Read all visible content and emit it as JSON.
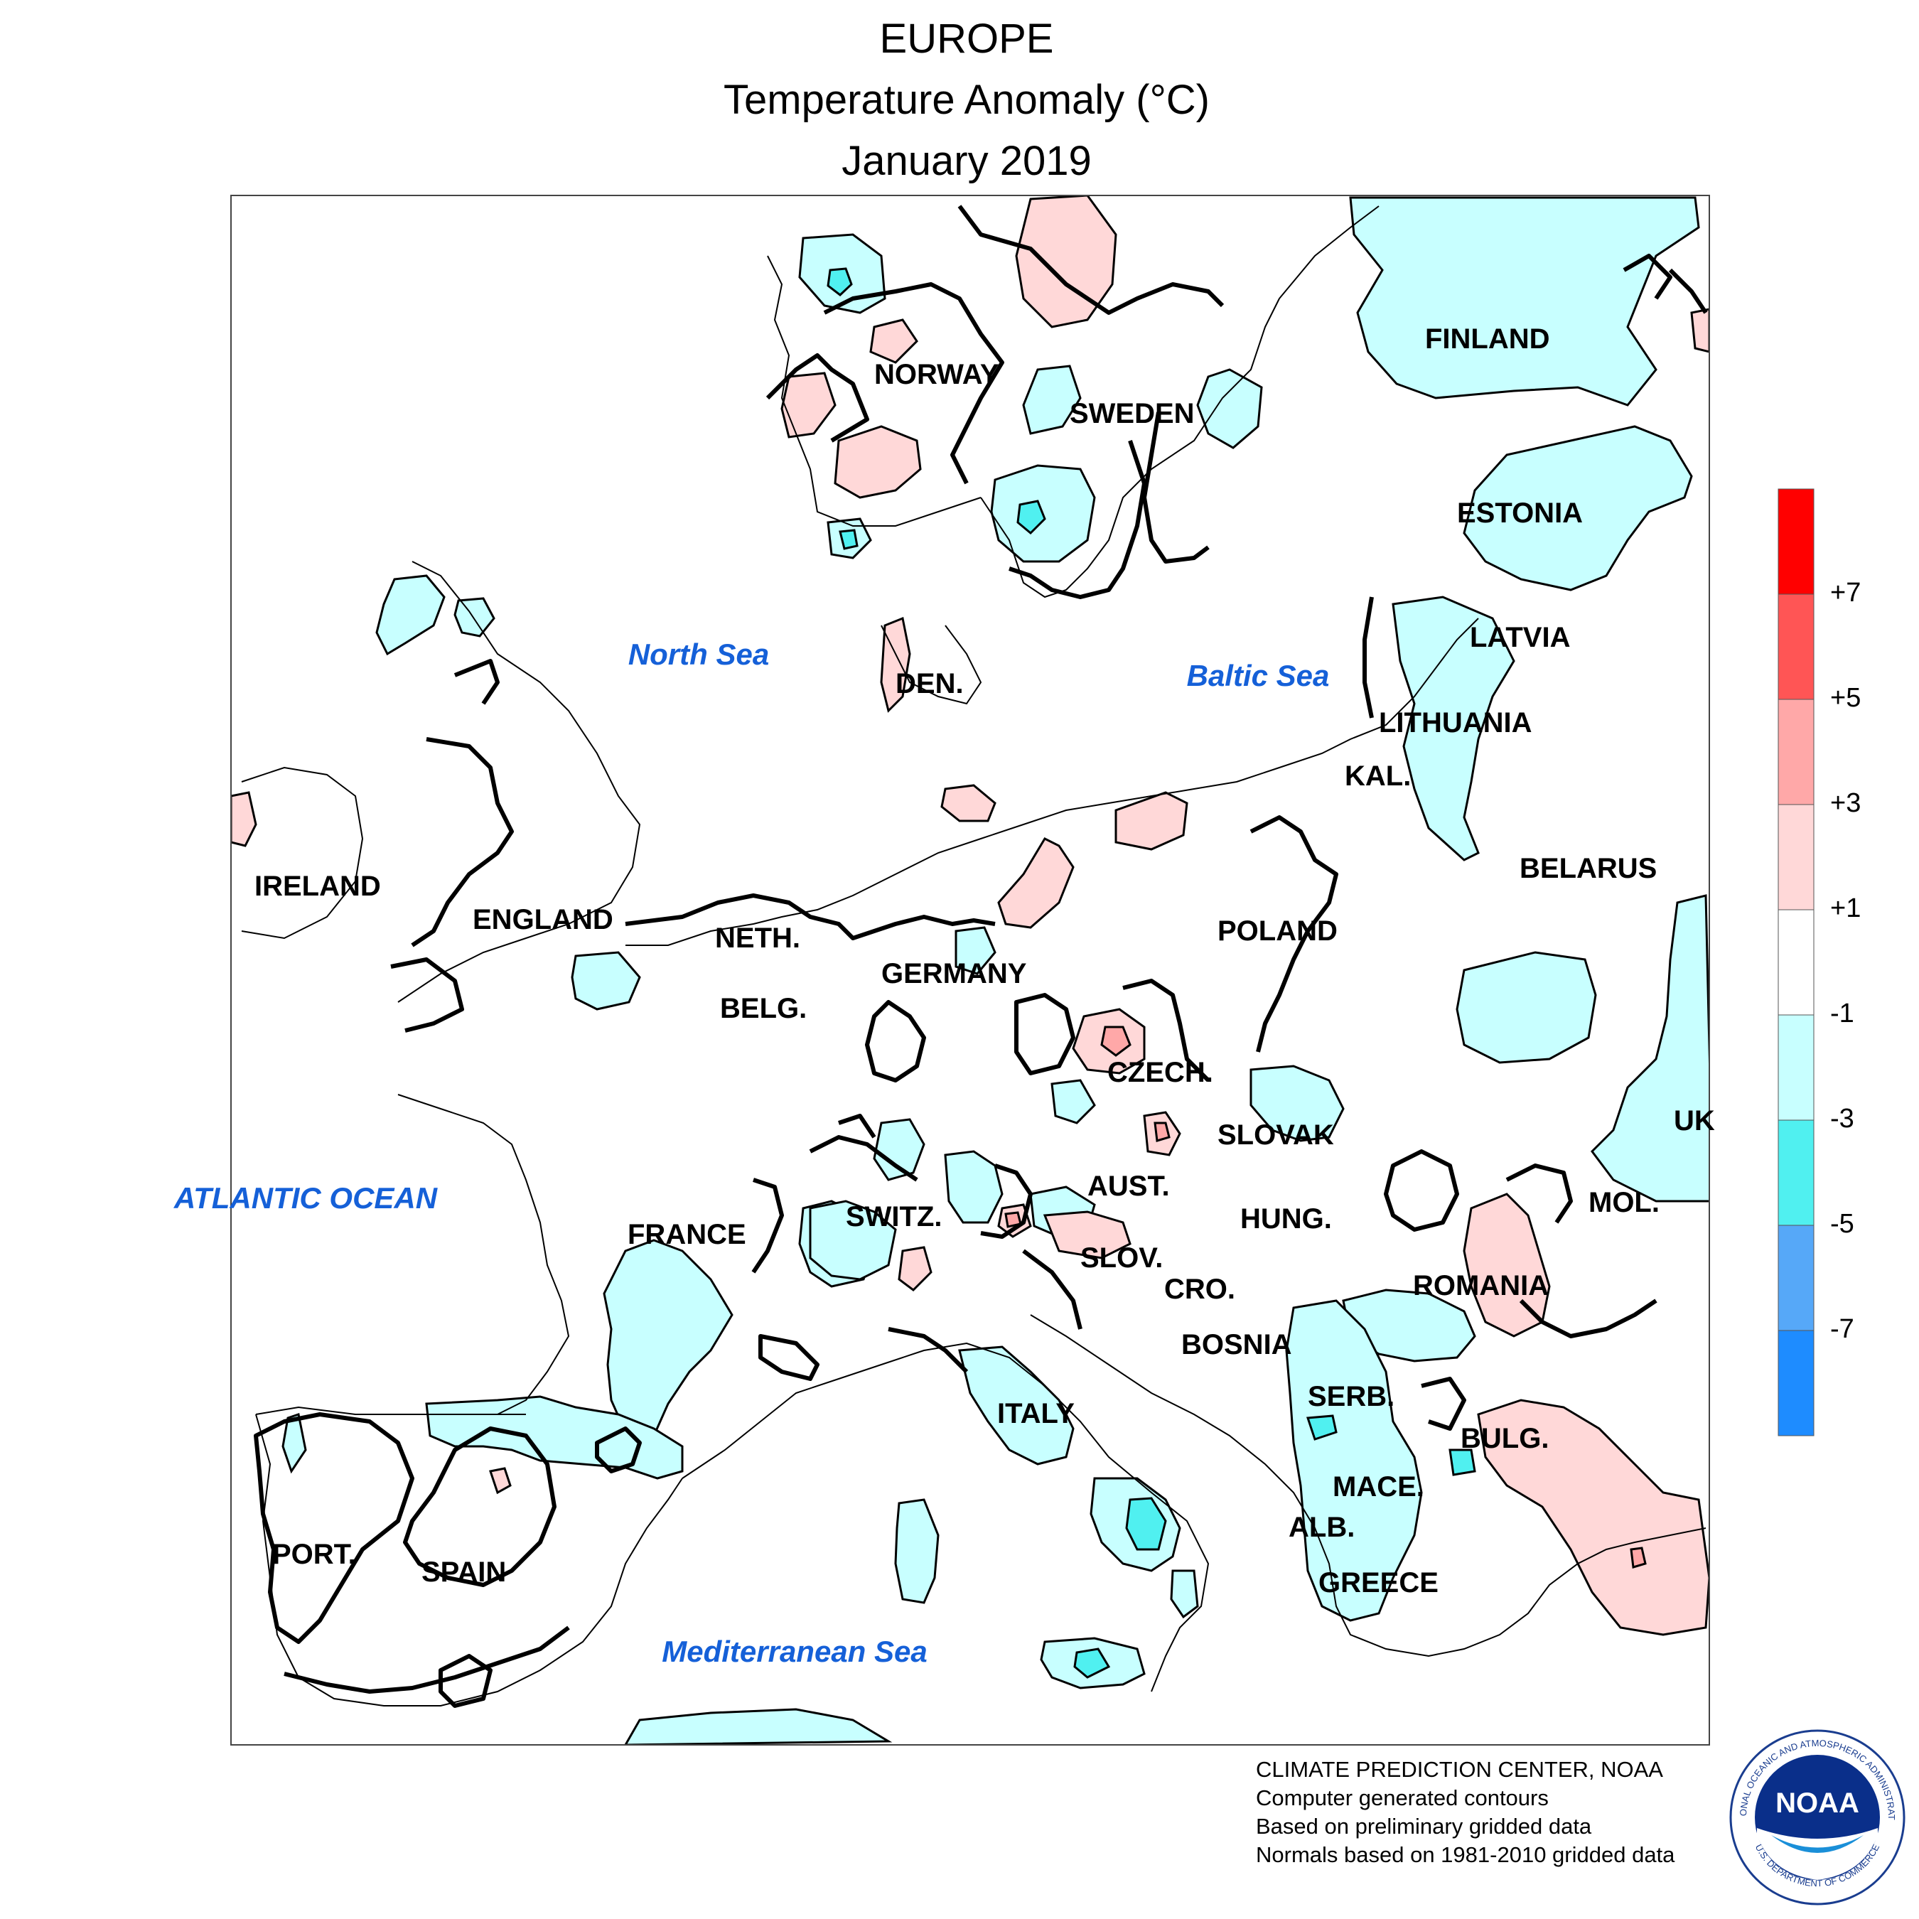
{
  "title": {
    "line1": "EUROPE",
    "line2": "Temperature Anomaly (°C)",
    "line3": "January 2019"
  },
  "map": {
    "countries": [
      "FINLAND",
      "NORWAY",
      "SWEDEN",
      "ESTONIA",
      "LATVIA",
      "DEN.",
      "LITHUANIA",
      "KAL.",
      "BELARUS",
      "IRELAND",
      "ENGLAND",
      "NETH.",
      "GERMANY",
      "POLAND",
      "BELG.",
      "CZECH.",
      "SLOVAK",
      "UK",
      "FRANCE",
      "SWITZ.",
      "AUST.",
      "HUNG.",
      "MOL.",
      "SLOV.",
      "CRO.",
      "ROMANIA",
      "BOSNIA",
      "ITALY",
      "SERB.",
      "BULG.",
      "MACE.",
      "ALB.",
      "PORT.",
      "SPAIN",
      "GREECE"
    ],
    "seas": [
      "North Sea",
      "Baltic Sea",
      "ATLANTIC OCEAN",
      "Mediterranean Sea"
    ],
    "sea_label_color": "#1560d8"
  },
  "legend": {
    "labels": [
      "+7",
      "+5",
      "+3",
      "+1",
      "-1",
      "-3",
      "-5",
      "-7"
    ],
    "colors": [
      "#ff0000",
      "#ff5555",
      "#ffa8a8",
      "#ffd8d8",
      "#ffffff",
      "#c8ffff",
      "#50f0f0",
      "#56a8f8",
      "#1e8cff"
    ]
  },
  "credits": {
    "line1": "CLIMATE PREDICTION CENTER, NOAA",
    "line2": "Computer generated contours",
    "line3": "Based on preliminary gridded data",
    "line4": "Normals based on 1981-2010 gridded data"
  },
  "logo": {
    "text": "NOAA",
    "ring_top": "NATIONAL OCEANIC AND ATMOSPHERIC ADMINISTRATION",
    "ring_bottom": "U.S. DEPARTMENT OF COMMERCE"
  }
}
